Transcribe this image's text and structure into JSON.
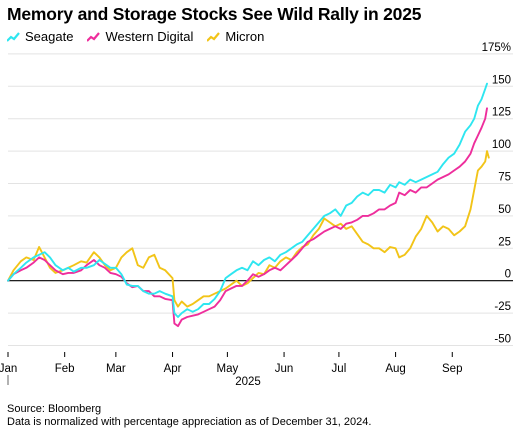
{
  "chart_data": {
    "type": "line",
    "title": "Memory and Storage Stocks See Wild Rally in 2025",
    "xlabel": "2025",
    "ylabel": "",
    "y_unit_suffix": "%",
    "ylim": [
      -55,
      178
    ],
    "y_ticks": [
      -50,
      -25,
      0,
      25,
      50,
      75,
      100,
      125,
      150,
      175
    ],
    "y_tick_labels": [
      "-50",
      "-25",
      "0",
      "25",
      "50",
      "75",
      "100",
      "125",
      "150",
      "175%"
    ],
    "x_range": [
      1,
      263
    ],
    "x_ticks": [
      {
        "label": "Jan",
        "x": 1
      },
      {
        "label": "Feb",
        "x": 32
      },
      {
        "label": "Mar",
        "x": 60
      },
      {
        "label": "Apr",
        "x": 91
      },
      {
        "label": "May",
        "x": 121
      },
      {
        "label": "Jun",
        "x": 152
      },
      {
        "label": "Jul",
        "x": 182
      },
      {
        "label": "Aug",
        "x": 213
      },
      {
        "label": "Sep",
        "x": 244
      }
    ],
    "x_unit": "day of year 2025",
    "grid": true,
    "legend_position": "top-left",
    "series": [
      {
        "name": "Seagate",
        "color": "#2ee6f0",
        "points": [
          [
            1,
            0
          ],
          [
            4,
            5
          ],
          [
            8,
            10
          ],
          [
            11,
            14
          ],
          [
            15,
            18
          ],
          [
            18,
            20
          ],
          [
            21,
            22
          ],
          [
            24,
            18
          ],
          [
            27,
            12
          ],
          [
            31,
            8
          ],
          [
            34,
            10
          ],
          [
            37,
            7
          ],
          [
            41,
            10
          ],
          [
            44,
            10
          ],
          [
            48,
            12
          ],
          [
            51,
            16
          ],
          [
            54,
            13
          ],
          [
            57,
            10
          ],
          [
            60,
            10
          ],
          [
            63,
            5
          ],
          [
            66,
            -3
          ],
          [
            69,
            -4
          ],
          [
            72,
            -4
          ],
          [
            75,
            -8
          ],
          [
            78,
            -10
          ],
          [
            81,
            -10
          ],
          [
            84,
            -8
          ],
          [
            87,
            -10
          ],
          [
            91,
            -12
          ],
          [
            92,
            -25
          ],
          [
            94,
            -28
          ],
          [
            96,
            -25
          ],
          [
            99,
            -22
          ],
          [
            102,
            -24
          ],
          [
            105,
            -22
          ],
          [
            108,
            -18
          ],
          [
            111,
            -18
          ],
          [
            114,
            -14
          ],
          [
            117,
            -8
          ],
          [
            120,
            2
          ],
          [
            123,
            5
          ],
          [
            126,
            8
          ],
          [
            129,
            10
          ],
          [
            132,
            8
          ],
          [
            135,
            15
          ],
          [
            138,
            12
          ],
          [
            141,
            16
          ],
          [
            144,
            18
          ],
          [
            147,
            15
          ],
          [
            150,
            20
          ],
          [
            153,
            22
          ],
          [
            156,
            25
          ],
          [
            159,
            28
          ],
          [
            162,
            30
          ],
          [
            165,
            35
          ],
          [
            168,
            40
          ],
          [
            171,
            45
          ],
          [
            174,
            50
          ],
          [
            177,
            52
          ],
          [
            180,
            55
          ],
          [
            183,
            50
          ],
          [
            186,
            58
          ],
          [
            189,
            60
          ],
          [
            192,
            65
          ],
          [
            195,
            68
          ],
          [
            198,
            66
          ],
          [
            201,
            70
          ],
          [
            204,
            70
          ],
          [
            207,
            68
          ],
          [
            210,
            74
          ],
          [
            213,
            72
          ],
          [
            215,
            76
          ],
          [
            218,
            74
          ],
          [
            221,
            78
          ],
          [
            224,
            76
          ],
          [
            227,
            78
          ],
          [
            230,
            80
          ],
          [
            233,
            82
          ],
          [
            236,
            84
          ],
          [
            239,
            90
          ],
          [
            242,
            95
          ],
          [
            245,
            98
          ],
          [
            248,
            105
          ],
          [
            251,
            115
          ],
          [
            254,
            120
          ],
          [
            256,
            125
          ],
          [
            258,
            135
          ],
          [
            260,
            140
          ],
          [
            262,
            148
          ],
          [
            263,
            152
          ]
        ]
      },
      {
        "name": "Western Digital",
        "color": "#ee2e9c",
        "points": [
          [
            1,
            0
          ],
          [
            4,
            5
          ],
          [
            8,
            8
          ],
          [
            11,
            10
          ],
          [
            15,
            14
          ],
          [
            18,
            18
          ],
          [
            21,
            16
          ],
          [
            24,
            12
          ],
          [
            27,
            8
          ],
          [
            31,
            5
          ],
          [
            34,
            6
          ],
          [
            37,
            6
          ],
          [
            41,
            8
          ],
          [
            44,
            12
          ],
          [
            48,
            16
          ],
          [
            51,
            12
          ],
          [
            54,
            10
          ],
          [
            57,
            6
          ],
          [
            60,
            5
          ],
          [
            63,
            3
          ],
          [
            66,
            -2
          ],
          [
            69,
            -5
          ],
          [
            72,
            -4
          ],
          [
            75,
            -8
          ],
          [
            78,
            -8
          ],
          [
            81,
            -12
          ],
          [
            84,
            -12
          ],
          [
            87,
            -14
          ],
          [
            91,
            -15
          ],
          [
            92,
            -33
          ],
          [
            94,
            -35
          ],
          [
            96,
            -30
          ],
          [
            99,
            -28
          ],
          [
            102,
            -27
          ],
          [
            105,
            -26
          ],
          [
            108,
            -24
          ],
          [
            111,
            -22
          ],
          [
            114,
            -20
          ],
          [
            117,
            -15
          ],
          [
            120,
            -8
          ],
          [
            123,
            -6
          ],
          [
            126,
            -4
          ],
          [
            129,
            -4
          ],
          [
            132,
            0
          ],
          [
            135,
            5
          ],
          [
            138,
            3
          ],
          [
            141,
            5
          ],
          [
            144,
            8
          ],
          [
            147,
            10
          ],
          [
            150,
            8
          ],
          [
            153,
            12
          ],
          [
            156,
            16
          ],
          [
            159,
            20
          ],
          [
            162,
            25
          ],
          [
            165,
            30
          ],
          [
            168,
            32
          ],
          [
            171,
            35
          ],
          [
            174,
            38
          ],
          [
            177,
            40
          ],
          [
            180,
            42
          ],
          [
            183,
            40
          ],
          [
            186,
            44
          ],
          [
            189,
            45
          ],
          [
            192,
            47
          ],
          [
            195,
            50
          ],
          [
            198,
            50
          ],
          [
            201,
            52
          ],
          [
            204,
            55
          ],
          [
            207,
            55
          ],
          [
            210,
            58
          ],
          [
            213,
            60
          ],
          [
            215,
            68
          ],
          [
            218,
            66
          ],
          [
            221,
            70
          ],
          [
            224,
            68
          ],
          [
            227,
            72
          ],
          [
            230,
            72
          ],
          [
            233,
            75
          ],
          [
            236,
            78
          ],
          [
            239,
            80
          ],
          [
            242,
            82
          ],
          [
            245,
            85
          ],
          [
            248,
            88
          ],
          [
            251,
            92
          ],
          [
            254,
            98
          ],
          [
            256,
            106
          ],
          [
            258,
            112
          ],
          [
            260,
            118
          ],
          [
            262,
            125
          ],
          [
            263,
            133
          ]
        ]
      },
      {
        "name": "Micron",
        "color": "#f2c418",
        "points": [
          [
            1,
            0
          ],
          [
            4,
            8
          ],
          [
            8,
            15
          ],
          [
            11,
            18
          ],
          [
            15,
            16
          ],
          [
            18,
            26
          ],
          [
            21,
            18
          ],
          [
            24,
            10
          ],
          [
            27,
            6
          ],
          [
            31,
            8
          ],
          [
            34,
            10
          ],
          [
            37,
            12
          ],
          [
            41,
            15
          ],
          [
            44,
            14
          ],
          [
            48,
            22
          ],
          [
            51,
            18
          ],
          [
            54,
            12
          ],
          [
            57,
            8
          ],
          [
            60,
            10
          ],
          [
            63,
            18
          ],
          [
            66,
            22
          ],
          [
            69,
            25
          ],
          [
            72,
            12
          ],
          [
            75,
            10
          ],
          [
            78,
            18
          ],
          [
            81,
            20
          ],
          [
            84,
            10
          ],
          [
            87,
            8
          ],
          [
            91,
            2
          ],
          [
            92,
            -15
          ],
          [
            94,
            -20
          ],
          [
            96,
            -16
          ],
          [
            99,
            -20
          ],
          [
            102,
            -18
          ],
          [
            105,
            -15
          ],
          [
            108,
            -12
          ],
          [
            111,
            -12
          ],
          [
            114,
            -10
          ],
          [
            117,
            -8
          ],
          [
            120,
            -6
          ],
          [
            123,
            -3
          ],
          [
            126,
            0
          ],
          [
            129,
            -4
          ],
          [
            132,
            -2
          ],
          [
            135,
            2
          ],
          [
            138,
            6
          ],
          [
            141,
            5
          ],
          [
            144,
            12
          ],
          [
            147,
            10
          ],
          [
            150,
            15
          ],
          [
            153,
            18
          ],
          [
            156,
            16
          ],
          [
            159,
            22
          ],
          [
            162,
            26
          ],
          [
            165,
            28
          ],
          [
            168,
            35
          ],
          [
            171,
            40
          ],
          [
            174,
            48
          ],
          [
            177,
            45
          ],
          [
            180,
            42
          ],
          [
            183,
            44
          ],
          [
            186,
            40
          ],
          [
            189,
            42
          ],
          [
            192,
            36
          ],
          [
            195,
            30
          ],
          [
            198,
            28
          ],
          [
            201,
            25
          ],
          [
            204,
            25
          ],
          [
            207,
            22
          ],
          [
            210,
            26
          ],
          [
            213,
            25
          ],
          [
            215,
            18
          ],
          [
            218,
            20
          ],
          [
            221,
            25
          ],
          [
            224,
            34
          ],
          [
            227,
            40
          ],
          [
            230,
            50
          ],
          [
            233,
            45
          ],
          [
            236,
            38
          ],
          [
            239,
            42
          ],
          [
            242,
            40
          ],
          [
            245,
            35
          ],
          [
            248,
            38
          ],
          [
            251,
            42
          ],
          [
            254,
            55
          ],
          [
            256,
            70
          ],
          [
            258,
            85
          ],
          [
            260,
            88
          ],
          [
            262,
            92
          ],
          [
            263,
            100
          ],
          [
            264,
            95
          ]
        ]
      }
    ],
    "notes": [
      "Source: Bloomberg",
      "Data is normalized with percentage appreciation as of December 31, 2024."
    ]
  }
}
